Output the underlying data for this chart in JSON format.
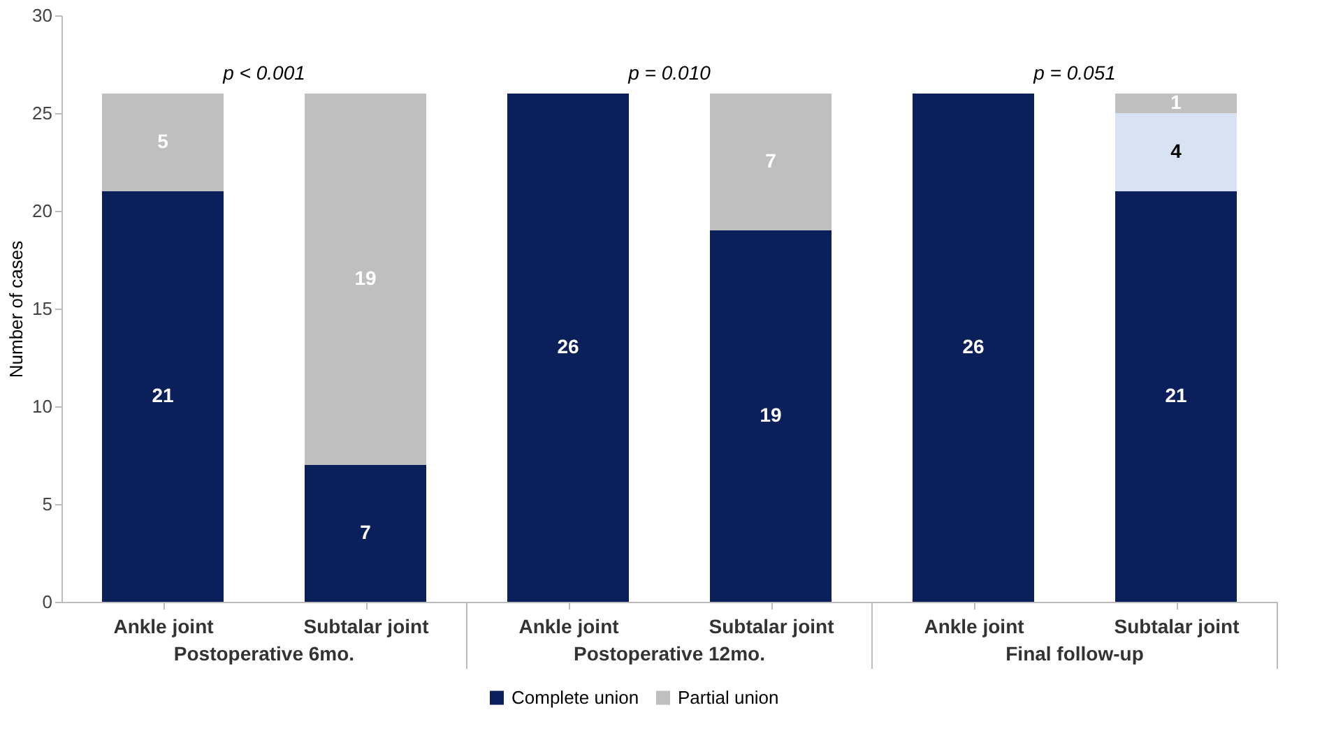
{
  "chart_data": {
    "type": "bar",
    "stacked": true,
    "categories": [
      "Ankle joint",
      "Subtalar joint",
      "Ankle joint",
      "Subtalar joint",
      "Ankle joint",
      "Subtalar joint"
    ],
    "series": [
      {
        "name": "Complete union",
        "color": "#0b1f5b",
        "values": [
          21,
          7,
          26,
          19,
          26,
          21
        ]
      },
      {
        "color": "#d9e2f3",
        "values": [
          null,
          null,
          null,
          null,
          null,
          4
        ]
      },
      {
        "name": "Partial union",
        "color": "#bfbfbf",
        "values": [
          5,
          19,
          null,
          7,
          null,
          1
        ]
      }
    ],
    "ylabel": "Number of cases",
    "ylim": [
      0,
      30
    ],
    "yticks": [
      0,
      5,
      10,
      15,
      20,
      25,
      30
    ],
    "annotations": [
      "p < 0.001",
      "p = 0.010",
      "p = 0.051",
      "Postoperative 6mo.",
      "Postoperative 12mo.",
      "Final follow-up"
    ],
    "data_labels": true,
    "legend": "bottom",
    "grid": false
  }
}
